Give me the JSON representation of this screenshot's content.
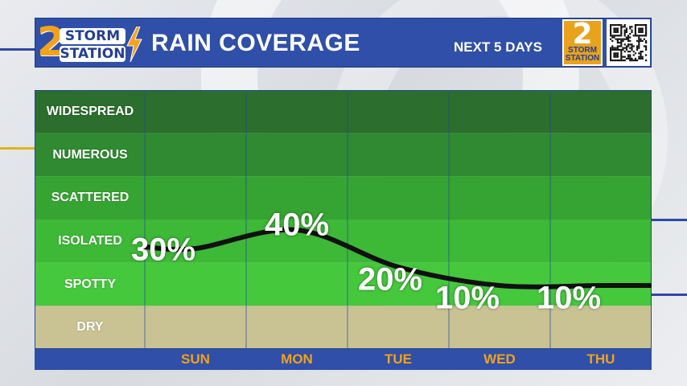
{
  "header": {
    "logo_line1": "STORM",
    "logo_line2": "STATION",
    "logo_numeral": "2",
    "title": "RAIN COVERAGE",
    "subtitle": "NEXT 5 DAYS",
    "station_logo_numeral": "2",
    "station_logo_line1": "STORM",
    "station_logo_line2": "STATION"
  },
  "colors": {
    "header_blue": "#2f4fa8",
    "day_label_orange": "#f2a21b",
    "dry_band": "#c9c293",
    "spotty_band": "#46c83d",
    "isolated_band": "#3db837",
    "scattered_band": "#36a432",
    "numerous_band": "#2f8a31",
    "widespread_band": "#2b6e2d",
    "line": "#111111",
    "logo_orange": "#e8a21c"
  },
  "chart_data": {
    "type": "line",
    "categories": [
      "SUN",
      "MON",
      "TUE",
      "WED",
      "THU"
    ],
    "values": [
      30,
      40,
      20,
      10,
      10
    ],
    "value_labels": [
      "30%",
      "40%",
      "20%",
      "10%",
      "10%"
    ],
    "coverage_levels": [
      "WIDESPREAD",
      "NUMEROUS",
      "SCATTERED",
      "ISOLATED",
      "SPOTTY",
      "DRY"
    ],
    "title": "RAIN COVERAGE",
    "subtitle": "NEXT 5 DAYS",
    "grid": true
  }
}
